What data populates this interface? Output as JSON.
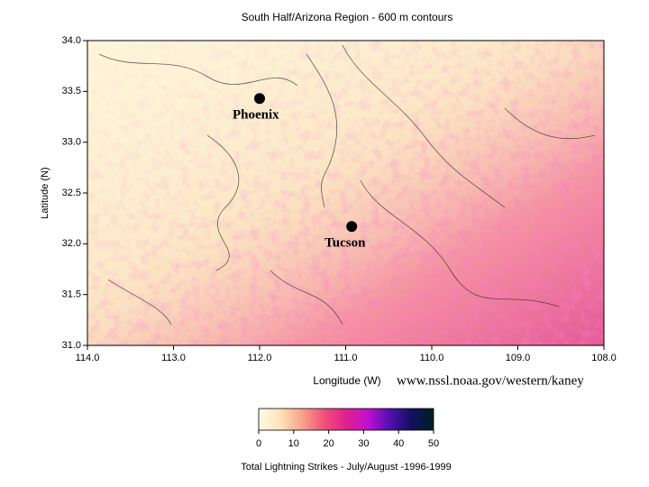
{
  "chart_data": {
    "type": "heatmap",
    "title": "South Half/Arizona Region - 600 m contours",
    "x_label": "Longitude (W)",
    "y_label": "Latitude (N)",
    "xlim": [
      114,
      108
    ],
    "xticks": [
      {
        "value": 114,
        "label": "114.0"
      },
      {
        "value": 113,
        "label": "113.0"
      },
      {
        "value": 112,
        "label": "112.0"
      },
      {
        "value": 111,
        "label": "111.0"
      },
      {
        "value": 110,
        "label": "110.0"
      },
      {
        "value": 109,
        "label": "109.0"
      },
      {
        "value": 108,
        "label": "108.0"
      }
    ],
    "ylim": [
      31,
      34
    ],
    "yticks": [
      {
        "value": 31,
        "label": "31.0"
      },
      {
        "value": 31.5,
        "label": "31.5"
      },
      {
        "value": 32,
        "label": "32.0"
      },
      {
        "value": 32.5,
        "label": "32.5"
      },
      {
        "value": 33,
        "label": "33.0"
      },
      {
        "value": 33.5,
        "label": "33.5"
      },
      {
        "value": 34,
        "label": "34.0"
      }
    ],
    "points": [
      {
        "name": "Phoenix",
        "lon": 112.0,
        "lat": 33.43
      },
      {
        "name": "Tucson",
        "lon": 110.93,
        "lat": 32.17
      }
    ],
    "source": "www.nssl.noaa.gov/western/kaney",
    "colorbar": {
      "label": "Total Lightning Strikes - July/August -1996-1999",
      "lim": [
        0,
        50
      ],
      "ticks": [
        0,
        10,
        20,
        30,
        40,
        50
      ],
      "colors": [
        "#fffbe6",
        "#fde3b8",
        "#f9a08a",
        "#f0507a",
        "#e0208c",
        "#c010d0",
        "#5010b0",
        "#101060",
        "#002020"
      ]
    }
  }
}
